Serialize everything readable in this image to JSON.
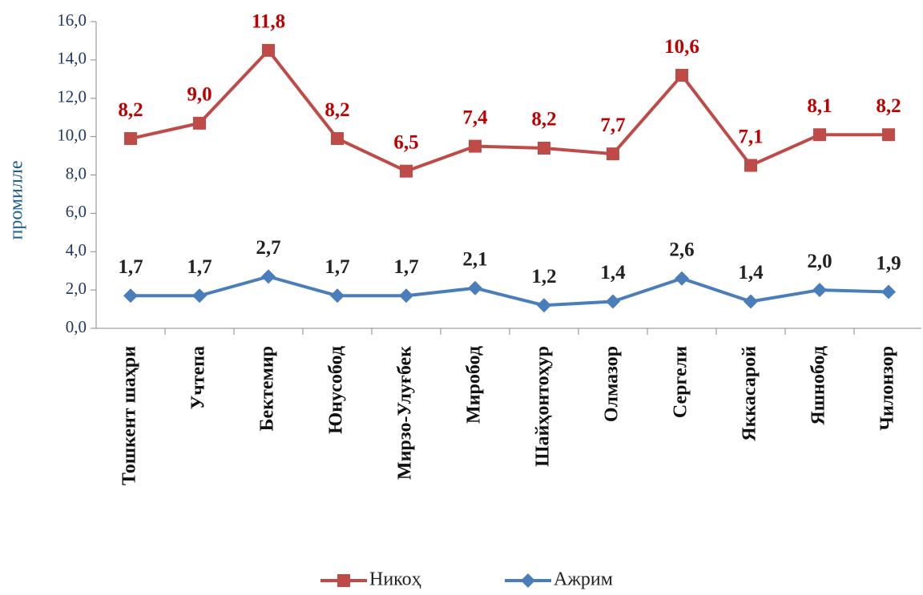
{
  "chart_data": {
    "type": "line",
    "stacked": true,
    "y_label": "промилле",
    "categories": [
      "Тошкент шаҳри",
      "Учтепа",
      "Бектемир",
      "Юнусобод",
      "Мирзо-Улуғбек",
      "Миробод",
      "Шайҳонтоҳур",
      "Олмазор",
      "Сергели",
      "Яккасарой",
      "Яшнобод",
      "Чилонзор"
    ],
    "series": [
      {
        "name": "Ажрим",
        "color": "#4a7ebb",
        "marker": "diamond",
        "values": [
          1.7,
          1.7,
          2.7,
          1.7,
          1.7,
          2.1,
          1.2,
          1.4,
          2.6,
          1.4,
          2.0,
          1.9
        ],
        "value_labels": [
          "1,7",
          "1,7",
          "2,7",
          "1,7",
          "1,7",
          "2,1",
          "1,2",
          "1,4",
          "2,6",
          "1,4",
          "2,0",
          "1,9"
        ],
        "label_color": "#222222"
      },
      {
        "name": "Никоҳ",
        "color": "#be4b48",
        "marker": "square",
        "values": [
          8.2,
          9.0,
          11.8,
          8.2,
          6.5,
          7.4,
          8.2,
          7.7,
          10.6,
          7.1,
          8.1,
          8.2
        ],
        "value_labels": [
          "8,2",
          "9,0",
          "11,8",
          "8,2",
          "6,5",
          "7,4",
          "8,2",
          "7,7",
          "10,6",
          "7,1",
          "8,1",
          "8,2"
        ],
        "label_color": "#c00000"
      }
    ],
    "ylim": [
      0,
      16
    ],
    "yticks": [
      {
        "value": 0,
        "label": "0,0"
      },
      {
        "value": 2,
        "label": "2,0"
      },
      {
        "value": 4,
        "label": "4,0"
      },
      {
        "value": 6,
        "label": "6,0"
      },
      {
        "value": 8,
        "label": "8,0"
      },
      {
        "value": 10,
        "label": "10,0"
      },
      {
        "value": 12,
        "label": "12,0"
      },
      {
        "value": 14,
        "label": "14,0"
      },
      {
        "value": 16,
        "label": "16,0"
      }
    ],
    "grid": false,
    "legend": "bottom"
  }
}
